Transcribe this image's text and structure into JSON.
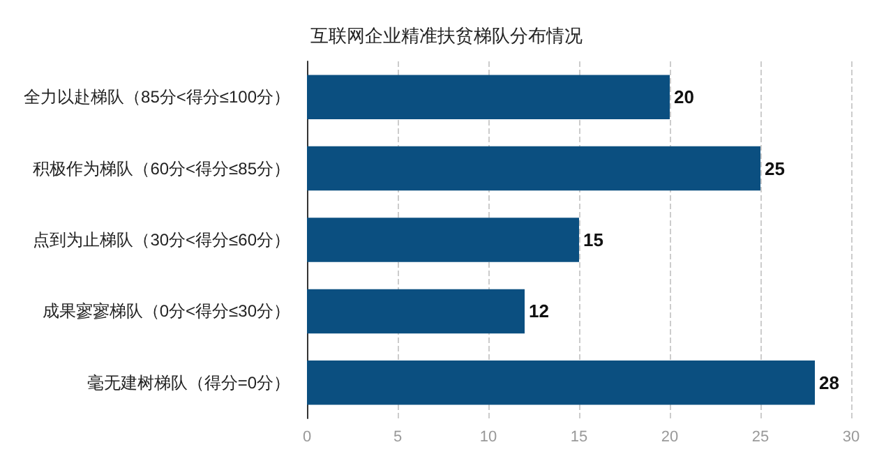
{
  "chart_data": {
    "type": "bar",
    "orientation": "horizontal",
    "title": "互联网企业精准扶贫梯队分布情况",
    "categories": [
      "全力以赴梯队（85分<得分≤100分）",
      "积极作为梯队（60分<得分≤85分）",
      "点到为止梯队（30分<得分≤60分）",
      "成果寥寥梯队（0分<得分≤30分）",
      "毫无建树梯队（得分=0分）"
    ],
    "values": [
      20,
      25,
      15,
      12,
      28
    ],
    "color": "#0b4f80",
    "xlim": [
      0,
      30
    ],
    "xticks": [
      0,
      5,
      10,
      15,
      20,
      25,
      30
    ],
    "grid": "x",
    "data_labels": true
  }
}
